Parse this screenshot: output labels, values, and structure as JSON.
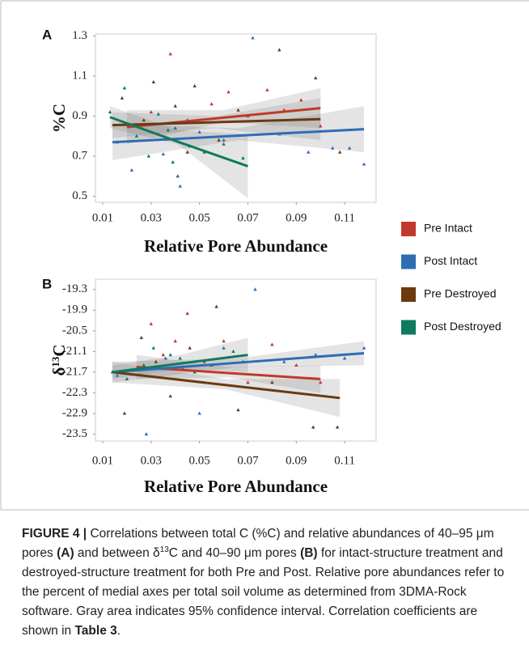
{
  "chart_data": [
    {
      "type": "scatter",
      "panel": "A",
      "ylabel": "%C",
      "xlabel": "Relative Pore Abundance",
      "xlim": [
        0.007,
        0.123
      ],
      "xticks": [
        0.01,
        0.03,
        0.05,
        0.07,
        0.09,
        0.11
      ],
      "ylim": [
        0.47,
        1.31
      ],
      "yticks": [
        0.5,
        0.7,
        0.9,
        1.1,
        1.3
      ],
      "grid": false,
      "series": [
        {
          "name": "Pre Intact",
          "color": "#c0392b",
          "x": [
            0.025,
            0.03,
            0.038,
            0.045,
            0.055,
            0.062,
            0.07,
            0.078,
            0.085,
            0.092,
            0.1,
            0.033
          ],
          "values": [
            0.85,
            0.92,
            1.21,
            0.88,
            0.96,
            1.02,
            0.9,
            1.03,
            0.93,
            0.98,
            0.85,
            0.81
          ],
          "fit": {
            "x": [
              0.02,
              0.06,
              0.1
            ],
            "values": [
              0.845,
              0.8925,
              0.94
            ],
            "lower": [
              0.76,
              0.87,
              0.84
            ],
            "upper": [
              0.93,
              0.93,
              1.04
            ]
          }
        },
        {
          "name": "Post Intact",
          "color": "#2e6db4",
          "x": [
            0.016,
            0.022,
            0.035,
            0.042,
            0.05,
            0.06,
            0.072,
            0.083,
            0.095,
            0.105,
            0.112,
            0.118,
            0.04
          ],
          "values": [
            0.77,
            0.63,
            0.71,
            0.55,
            0.82,
            0.78,
            1.29,
            0.81,
            0.72,
            0.74,
            0.74,
            0.66,
            0.84
          ],
          "fit": {
            "x": [
              0.014,
              0.066,
              0.118
            ],
            "values": [
              0.77,
              0.8025,
              0.835
            ],
            "lower": [
              0.68,
              0.78,
              0.72
            ],
            "upper": [
              0.86,
              0.84,
              0.95
            ]
          }
        },
        {
          "name": "Pre Destroyed",
          "color": "#6b3a0f",
          "x": [
            0.018,
            0.027,
            0.031,
            0.04,
            0.048,
            0.058,
            0.066,
            0.083,
            0.098,
            0.108,
            0.045
          ],
          "values": [
            0.99,
            0.88,
            1.07,
            0.95,
            1.05,
            0.78,
            0.93,
            1.23,
            1.09,
            0.72,
            0.72
          ],
          "fit": {
            "x": [
              0.014,
              0.057,
              0.1
            ],
            "values": [
              0.855,
              0.87,
              0.885
            ],
            "lower": [
              0.79,
              0.84,
              0.78
            ],
            "upper": [
              0.92,
              0.9,
              0.99
            ]
          }
        },
        {
          "name": "Post Destroyed",
          "color": "#0f7a5f",
          "x": [
            0.013,
            0.019,
            0.024,
            0.029,
            0.033,
            0.037,
            0.041,
            0.046,
            0.052,
            0.06,
            0.068,
            0.039
          ],
          "values": [
            0.92,
            1.04,
            0.8,
            0.7,
            0.91,
            0.83,
            0.6,
            0.75,
            0.72,
            0.76,
            0.69,
            0.67
          ],
          "fit": {
            "x": [
              0.013,
              0.041,
              0.07
            ],
            "values": [
              0.895,
              0.7725,
              0.65
            ],
            "lower": [
              0.84,
              0.76,
              0.49
            ],
            "upper": [
              0.95,
              0.83,
              0.81
            ]
          }
        }
      ]
    },
    {
      "type": "scatter",
      "panel": "B",
      "ylabel": [
        "δ",
        "13",
        "C"
      ],
      "xlabel": "Relative Pore Abundance",
      "xlim": [
        0.007,
        0.123
      ],
      "xticks": [
        0.01,
        0.03,
        0.05,
        0.07,
        0.09,
        0.11
      ],
      "ylim": [
        -23.7,
        -19.0
      ],
      "yticks": [
        -19.3,
        -19.9,
        -20.5,
        -21.1,
        -21.7,
        -22.3,
        -22.9,
        -23.5
      ],
      "grid": false,
      "series": [
        {
          "name": "Pre Intact",
          "color": "#c0392b",
          "x": [
            0.024,
            0.03,
            0.035,
            0.04,
            0.045,
            0.052,
            0.06,
            0.07,
            0.08,
            0.09,
            0.1
          ],
          "values": [
            -21.6,
            -20.3,
            -21.2,
            -20.8,
            -20.0,
            -21.4,
            -20.8,
            -22.0,
            -20.9,
            -21.5,
            -22.0
          ],
          "fit": {
            "x": [
              0.024,
              0.062,
              0.1
            ],
            "values": [
              -21.55,
              -21.725,
              -21.9
            ],
            "lower": [
              -21.9,
              -21.85,
              -22.3
            ],
            "upper": [
              -21.2,
              -21.55,
              -21.5
            ]
          }
        },
        {
          "name": "Post Intact",
          "color": "#2e6db4",
          "x": [
            0.016,
            0.028,
            0.036,
            0.043,
            0.05,
            0.06,
            0.073,
            0.085,
            0.098,
            0.11,
            0.118
          ],
          "values": [
            -21.8,
            -23.5,
            -21.3,
            -21.6,
            -22.9,
            -21.0,
            -19.3,
            -21.4,
            -21.2,
            -21.3,
            -21.0
          ],
          "fit": {
            "x": [
              0.014,
              0.066,
              0.118
            ],
            "values": [
              -21.7,
              -21.425,
              -21.15
            ],
            "lower": [
              -22.0,
              -21.55,
              -21.5
            ],
            "upper": [
              -21.4,
              -21.3,
              -20.8
            ]
          }
        },
        {
          "name": "Pre Destroyed",
          "color": "#6b3a0f",
          "x": [
            0.019,
            0.026,
            0.032,
            0.038,
            0.046,
            0.057,
            0.066,
            0.08,
            0.097,
            0.107
          ],
          "values": [
            -22.9,
            -20.7,
            -21.4,
            -22.4,
            -21.0,
            -19.8,
            -22.8,
            -22.0,
            -23.3,
            -23.3
          ],
          "fit": {
            "x": [
              0.014,
              0.061,
              0.108
            ],
            "values": [
              -21.7,
              -22.075,
              -22.45
            ],
            "lower": [
              -22.0,
              -22.2,
              -23.0
            ],
            "upper": [
              -21.4,
              -21.9,
              -21.9
            ]
          }
        },
        {
          "name": "Post Destroyed",
          "color": "#0f7a5f",
          "x": [
            0.014,
            0.02,
            0.027,
            0.031,
            0.035,
            0.038,
            0.042,
            0.048,
            0.055,
            0.064,
            0.068
          ],
          "values": [
            -21.7,
            -21.9,
            -21.5,
            -21.0,
            -21.6,
            -21.2,
            -21.3,
            -21.7,
            -21.5,
            -21.1,
            -21.4
          ],
          "fit": {
            "x": [
              0.014,
              0.042,
              0.07
            ],
            "values": [
              -21.7,
              -21.45,
              -21.2
            ],
            "lower": [
              -21.9,
              -21.6,
              -21.7
            ],
            "upper": [
              -21.5,
              -21.2,
              -20.7
            ]
          }
        }
      ]
    }
  ],
  "caption": [
    "FIGURE 4 |",
    " Correlations between total C (%C) and relative abundances of 40–95 μm pores ",
    "(A)",
    " and between δ",
    "13",
    "C and 40–90 μm pores ",
    "(B)",
    " for intact-structure treatment and destroyed-structure treatment for both Pre and Post. Relative pore abundances refer to the percent of medial axes per total soil volume as determined from 3DMA-Rock software. Gray area indicates 95% confidence interval. Correlation coefficients are shown in ",
    "Table 3",
    "."
  ]
}
